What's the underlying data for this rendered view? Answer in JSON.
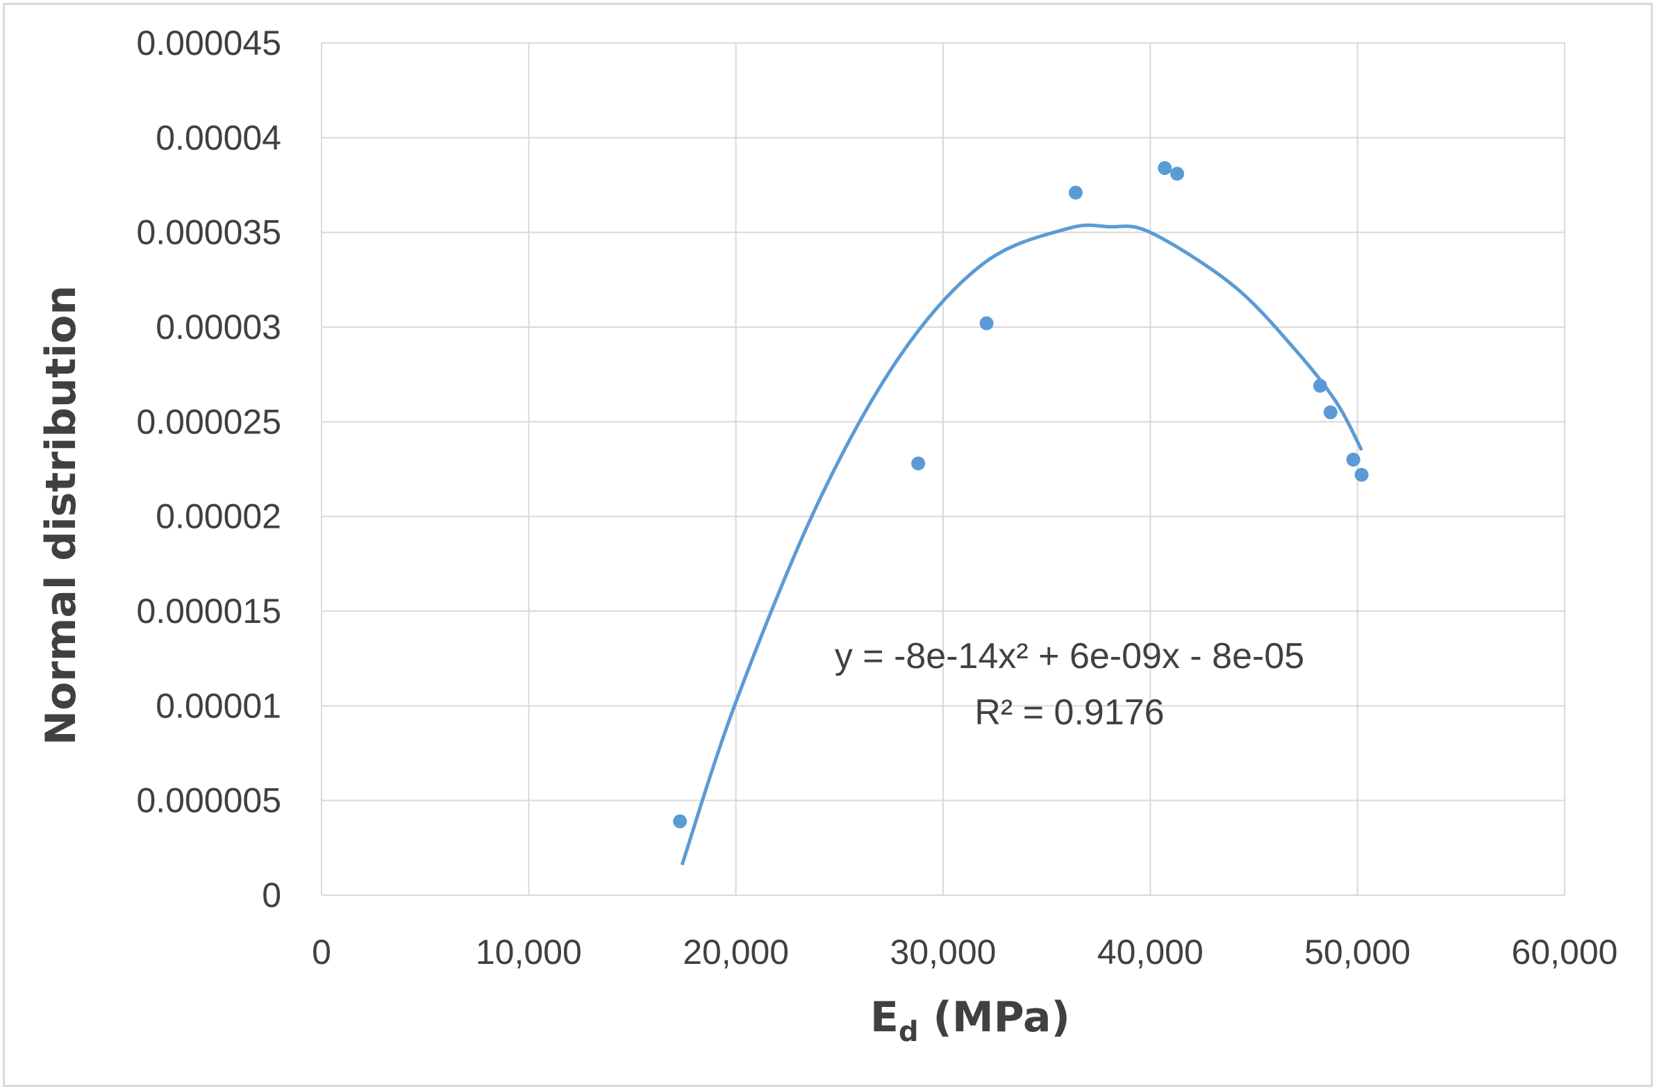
{
  "chart_data": {
    "type": "scatter",
    "xlabel": {
      "main": "E",
      "sub": "d",
      "rest": " (MPa)"
    },
    "ylabel": "Normal distribution",
    "xlim": [
      0,
      60000
    ],
    "ylim": [
      0,
      4.5e-05
    ],
    "x_ticks": [
      {
        "value": 0,
        "label": "0"
      },
      {
        "value": 10000,
        "label": "10,000"
      },
      {
        "value": 20000,
        "label": "20,000"
      },
      {
        "value": 30000,
        "label": "30,000"
      },
      {
        "value": 40000,
        "label": "40,000"
      },
      {
        "value": 50000,
        "label": "50,000"
      },
      {
        "value": 60000,
        "label": "60,000"
      }
    ],
    "y_ticks": [
      {
        "value": 0,
        "label": "0"
      },
      {
        "value": 5e-06,
        "label": "0.000005"
      },
      {
        "value": 1e-05,
        "label": "0.00001"
      },
      {
        "value": 1.5e-05,
        "label": "0.000015"
      },
      {
        "value": 2e-05,
        "label": "0.00002"
      },
      {
        "value": 2.5e-05,
        "label": "0.000025"
      },
      {
        "value": 3e-05,
        "label": "0.00003"
      },
      {
        "value": 3.5e-05,
        "label": "0.000035"
      },
      {
        "value": 4e-05,
        "label": "0.00004"
      },
      {
        "value": 4.5e-05,
        "label": "0.000045"
      }
    ],
    "grid": true,
    "points": [
      {
        "x": 17300,
        "y": 3.9e-06
      },
      {
        "x": 28800,
        "y": 2.28e-05
      },
      {
        "x": 32100,
        "y": 3.02e-05
      },
      {
        "x": 36400,
        "y": 3.71e-05
      },
      {
        "x": 40700,
        "y": 3.84e-05
      },
      {
        "x": 41300,
        "y": 3.81e-05
      },
      {
        "x": 48200,
        "y": 2.69e-05
      },
      {
        "x": 48700,
        "y": 2.55e-05
      },
      {
        "x": 49800,
        "y": 2.3e-05
      },
      {
        "x": 50200,
        "y": 2.22e-05
      }
    ],
    "trendline": {
      "type": "polynomial",
      "x_range": [
        17400,
        50200
      ],
      "curve": [
        {
          "x": 17400,
          "y": 1.6e-06
        },
        {
          "x": 20000,
          "y": 1.02e-05
        },
        {
          "x": 24000,
          "y": 2.08e-05
        },
        {
          "x": 28000,
          "y": 2.86e-05
        },
        {
          "x": 32000,
          "y": 3.34e-05
        },
        {
          "x": 36000,
          "y": 3.52e-05
        },
        {
          "x": 38000,
          "y": 3.53e-05
        },
        {
          "x": 40000,
          "y": 3.5e-05
        },
        {
          "x": 44000,
          "y": 3.22e-05
        },
        {
          "x": 47000,
          "y": 2.88e-05
        },
        {
          "x": 49000,
          "y": 2.6e-05
        },
        {
          "x": 50200,
          "y": 2.35e-05
        }
      ],
      "equation": "y = -8e-14x² + 6e-09x - 8e-05",
      "r_squared": "R² = 0.9176"
    },
    "colors": {
      "points": "#5b9bd5",
      "trendline": "#5b9bd5",
      "grid": "#d9d9d9",
      "text": "#404040"
    }
  }
}
